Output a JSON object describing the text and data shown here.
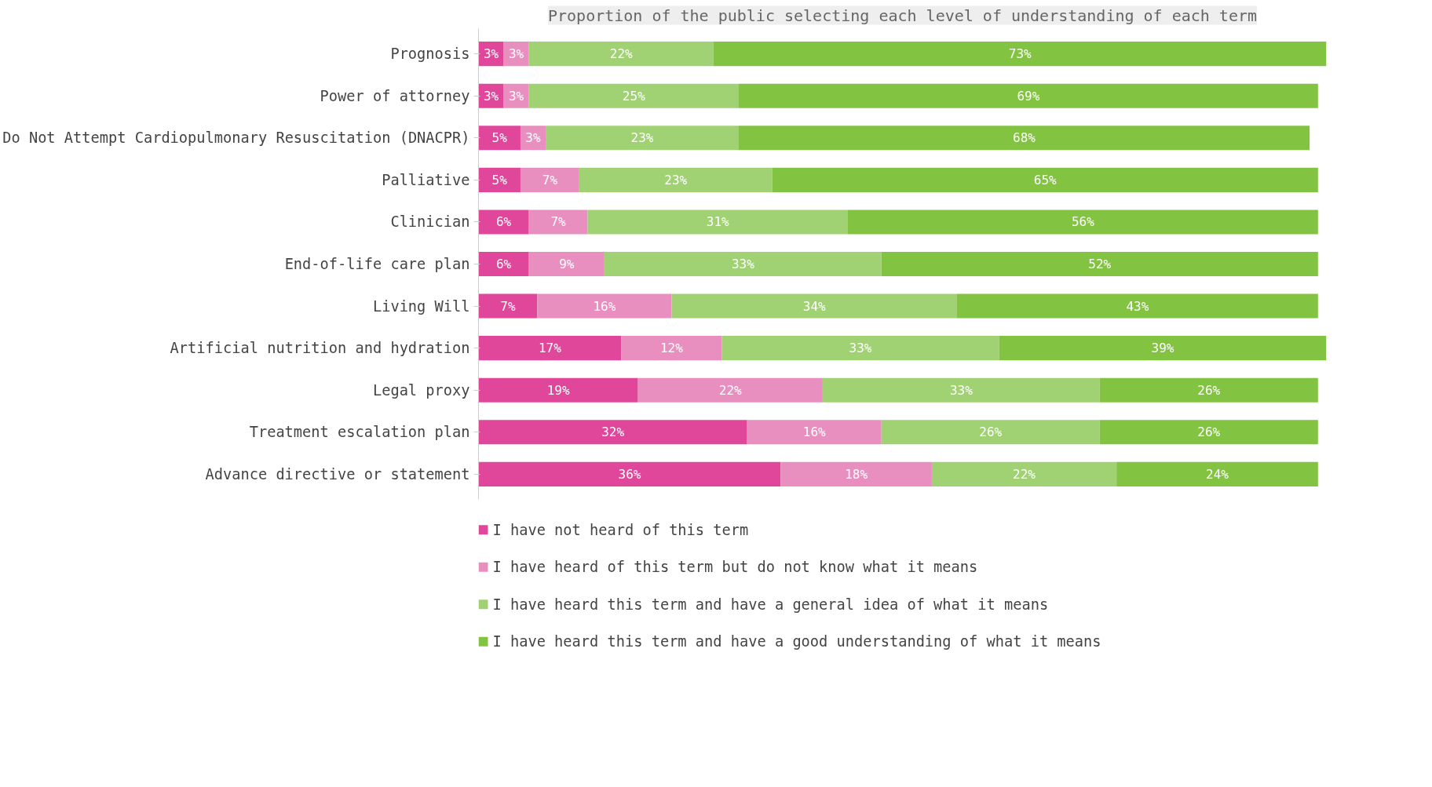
{
  "chart_data": {
    "type": "bar",
    "orientation": "horizontal",
    "stacked": true,
    "title": "Proportion of the public selecting each level of understanding of each term",
    "categories": [
      "Prognosis",
      "Power of attorney",
      "Do Not Attempt Cardiopulmonary Resuscitation (DNACPR)",
      "Palliative",
      "Clinician",
      "End-of-life care plan",
      "Living Will",
      "Artificial nutrition and hydration",
      "Legal proxy",
      "Treatment escalation plan",
      "Advance directive or statement"
    ],
    "series": [
      {
        "name": "I have not heard of this term",
        "color": "#e0479a",
        "values": [
          3,
          3,
          5,
          5,
          6,
          6,
          7,
          17,
          19,
          32,
          36
        ],
        "value_labels": [
          "3%",
          "3%",
          "5%",
          "5%",
          "6%",
          "6%",
          "7%",
          "17%",
          "19%",
          "32%",
          "36%"
        ]
      },
      {
        "name": "I have heard of this term but do not know what it means",
        "color": "#e98fc0",
        "values": [
          3,
          3,
          3,
          7,
          7,
          9,
          16,
          12,
          22,
          16,
          18
        ],
        "value_labels": [
          "3%",
          "3%",
          "3%",
          "7%",
          "7%",
          "9%",
          "16%",
          "12%",
          "22%",
          "16%",
          "18%"
        ]
      },
      {
        "name": "I have heard this term and have a general idea of what it means",
        "color": "#a0d173",
        "values": [
          22,
          25,
          23,
          23,
          31,
          33,
          34,
          33,
          33,
          26,
          22
        ],
        "value_labels": [
          "22%",
          "25%",
          "23%",
          "23%",
          "31%",
          "33%",
          "34%",
          "33%",
          "33%",
          "26%",
          "22%"
        ]
      },
      {
        "name": "I have heard this term and have a good understanding of what it means",
        "color": "#82c341",
        "values": [
          73,
          69,
          68,
          65,
          56,
          52,
          43,
          39,
          26,
          26,
          24
        ],
        "value_labels": [
          "73%",
          "69%",
          "68%",
          "65%",
          "56%",
          "52%",
          "43%",
          "39%",
          "26%",
          "26%",
          "24%"
        ]
      }
    ],
    "tick_labels": "y",
    "legend": "bottom"
  }
}
